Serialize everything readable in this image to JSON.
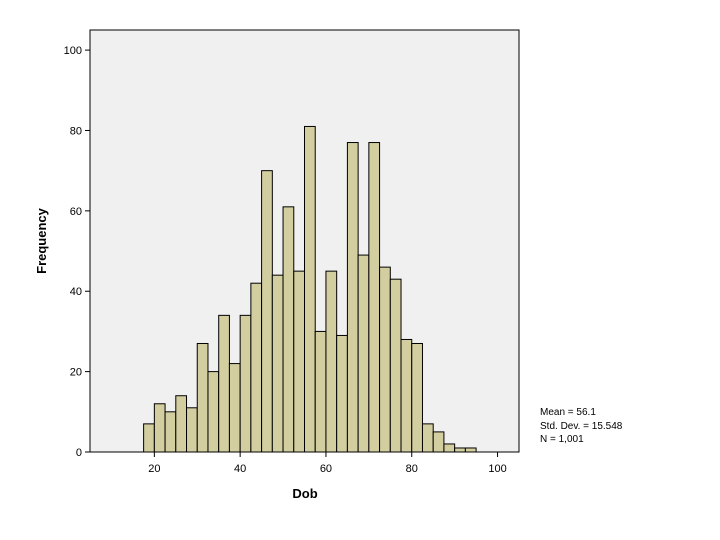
{
  "chart_data": {
    "type": "bar",
    "subtype": "histogram",
    "xlabel": "Dob",
    "ylabel": "Frequency",
    "xlim": [
      5,
      105
    ],
    "ylim": [
      0,
      105
    ],
    "x_ticks": [
      20,
      40,
      60,
      80,
      100
    ],
    "y_ticks": [
      0,
      20,
      40,
      60,
      80,
      100
    ],
    "bin_width": 2.5,
    "bins": [
      {
        "start": 17.5,
        "count": 7
      },
      {
        "start": 20.0,
        "count": 12
      },
      {
        "start": 22.5,
        "count": 10
      },
      {
        "start": 25.0,
        "count": 14
      },
      {
        "start": 27.5,
        "count": 11
      },
      {
        "start": 30.0,
        "count": 27
      },
      {
        "start": 32.5,
        "count": 20
      },
      {
        "start": 35.0,
        "count": 34
      },
      {
        "start": 37.5,
        "count": 22
      },
      {
        "start": 40.0,
        "count": 34
      },
      {
        "start": 42.5,
        "count": 42
      },
      {
        "start": 45.0,
        "count": 70
      },
      {
        "start": 47.5,
        "count": 44
      },
      {
        "start": 50.0,
        "count": 61
      },
      {
        "start": 52.5,
        "count": 45
      },
      {
        "start": 55.0,
        "count": 81
      },
      {
        "start": 57.5,
        "count": 30
      },
      {
        "start": 60.0,
        "count": 45
      },
      {
        "start": 62.5,
        "count": 29
      },
      {
        "start": 65.0,
        "count": 77
      },
      {
        "start": 67.5,
        "count": 49
      },
      {
        "start": 70.0,
        "count": 77
      },
      {
        "start": 72.5,
        "count": 46
      },
      {
        "start": 75.0,
        "count": 43
      },
      {
        "start": 77.5,
        "count": 28
      },
      {
        "start": 80.0,
        "count": 27
      },
      {
        "start": 82.5,
        "count": 7
      },
      {
        "start": 85.0,
        "count": 5
      },
      {
        "start": 87.5,
        "count": 2
      },
      {
        "start": 90.0,
        "count": 1
      },
      {
        "start": 92.5,
        "count": 1
      }
    ],
    "grid": false,
    "colors": {
      "bar_fill": "#d3cea0",
      "bar_stroke": "#000000",
      "plot_background": "#f0f0f0",
      "page_background": "#ffffff"
    }
  },
  "stats": {
    "mean": "Mean = 56.1",
    "std_dev": "Std. Dev. = 15.548",
    "n": "N = 1,001"
  }
}
